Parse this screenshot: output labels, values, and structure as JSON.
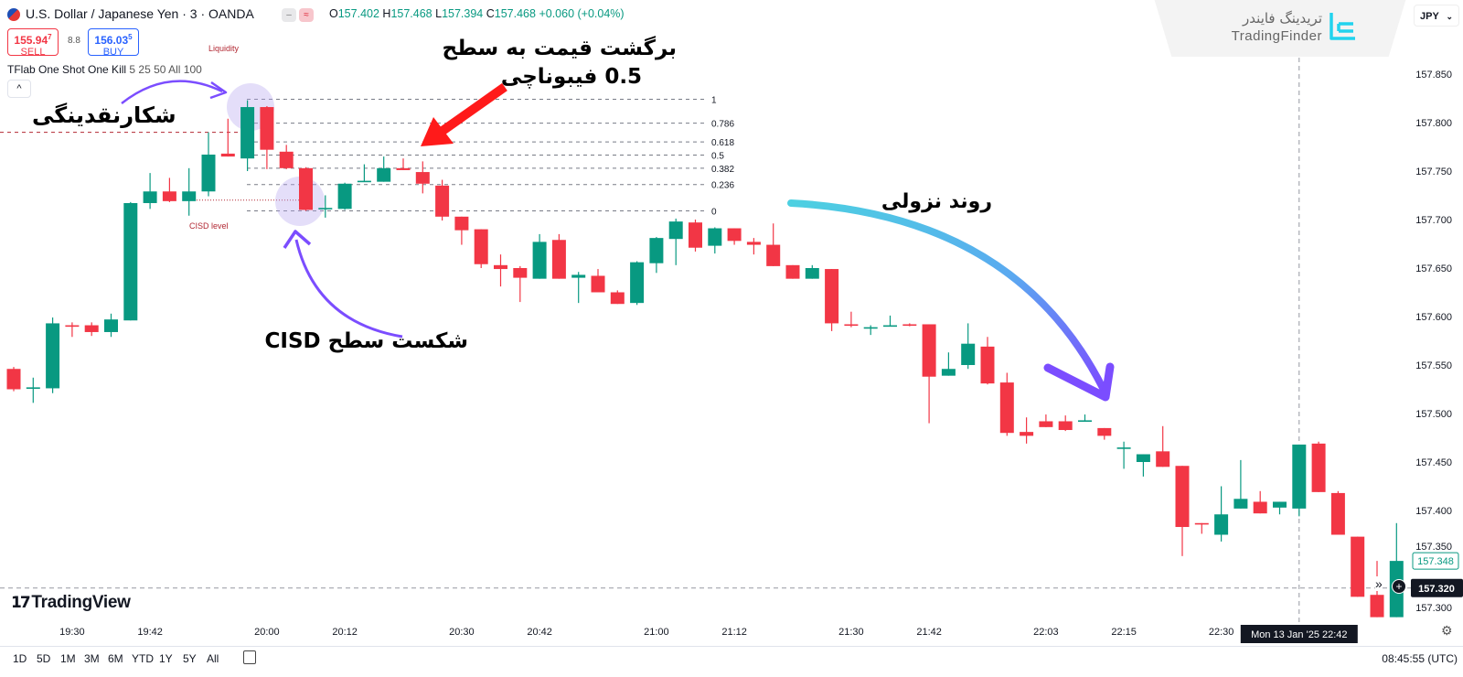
{
  "header": {
    "symbol_title": "U.S. Dollar / Japanese Yen · 3 · OANDA",
    "ohlc": {
      "o_label": "O",
      "o": "157.402",
      "h_label": "H",
      "h": "157.468",
      "l_label": "L",
      "l": "157.394",
      "c_label": "C",
      "c": "157.468",
      "change": "+0.060 (+0.04%)"
    }
  },
  "trade": {
    "sell_price": "155.94",
    "sell_pip": "7",
    "sell_label": "SELL",
    "spread": "8.8",
    "buy_price": "156.03",
    "buy_pip": "5",
    "buy_label": "BUY"
  },
  "indicator": {
    "name": "TFlab One Shot One Kill",
    "params": "5 25 50 All 100",
    "collapse_icon": "chevron-up"
  },
  "watermark": {
    "fa": "تریدینگ فایندر",
    "en": "TradingFinder"
  },
  "currency": "JPY",
  "annotations": {
    "liquidity_hunt": "شکارنقدینگی",
    "fib_return_line1": "برگشت قیمت به سطح",
    "fib_return_line2": "0.5 فیبوناچی",
    "cisd_break": "شکست سطح CISD",
    "downtrend": "روند نزولی"
  },
  "chart_labels": {
    "liquidity": "Liquidity",
    "cisd": "CISD level"
  },
  "crosshair": {
    "price": "157.320",
    "time": "Mon 13 Jan '25  22:42"
  },
  "last_price": "157.348",
  "logo": "TradingView",
  "ranges": [
    "1D",
    "5D",
    "1M",
    "3M",
    "6M",
    "YTD",
    "1Y",
    "5Y",
    "All"
  ],
  "clock": "08:45:55 (UTC)",
  "colors": {
    "up": "#089981",
    "down": "#f23645",
    "fib": "#787b86",
    "liquidity": "#b22833",
    "arrow_red": "#ff1a1a",
    "arrow_purple": "#7b4dff",
    "arrow_cyan": "#4dd0e1"
  },
  "chart_data": {
    "type": "candlestick",
    "symbol": "USDJPY",
    "timeframe_minutes": 3,
    "ylim": [
      157.282,
      157.872
    ],
    "y_ticks": [
      "157.850",
      "157.800",
      "157.750",
      "157.700",
      "157.650",
      "157.600",
      "157.550",
      "157.500",
      "157.450",
      "157.400",
      "157.350",
      "157.300"
    ],
    "x_ticks": [
      "19:30",
      "19:42",
      "20:00",
      "20:12",
      "20:30",
      "20:42",
      "21:00",
      "21:12",
      "21:30",
      "21:42",
      "22:03",
      "22:15",
      "22:30"
    ],
    "fib": {
      "high": 157.824,
      "low": 157.709,
      "levels": [
        "1",
        "0.786",
        "0.618",
        "0.5",
        "0.382",
        "0.236",
        "0"
      ]
    },
    "liquidity_level": 157.79,
    "cisd_level": 157.72,
    "candles_fields": [
      "t",
      "o",
      "h",
      "l",
      "c"
    ],
    "candles": [
      [
        "19:21",
        157.546,
        157.548,
        157.523,
        157.525
      ],
      [
        "19:24",
        157.526,
        157.537,
        157.511,
        157.527
      ],
      [
        "19:27",
        157.526,
        157.599,
        157.521,
        157.593
      ],
      [
        "19:30",
        157.591,
        157.594,
        157.579,
        157.59
      ],
      [
        "19:33",
        157.591,
        157.594,
        157.58,
        157.584
      ],
      [
        "19:36",
        157.584,
        157.603,
        157.579,
        157.597
      ],
      [
        "19:39",
        157.596,
        157.718,
        157.596,
        157.717
      ],
      [
        "19:42",
        157.717,
        157.748,
        157.711,
        157.729
      ],
      [
        "19:45",
        157.729,
        157.743,
        157.718,
        157.719
      ],
      [
        "19:48",
        157.719,
        157.753,
        157.704,
        157.729
      ],
      [
        "19:51",
        157.729,
        157.79,
        157.724,
        157.767
      ],
      [
        "19:54",
        157.768,
        157.804,
        157.765,
        157.765
      ],
      [
        "19:57",
        157.763,
        157.823,
        157.75,
        157.816
      ],
      [
        "20:00",
        157.816,
        157.817,
        157.752,
        157.772
      ],
      [
        "20:03",
        157.77,
        157.777,
        157.752,
        157.753
      ],
      [
        "20:06",
        157.753,
        157.754,
        157.709,
        157.71
      ],
      [
        "20:09",
        157.711,
        157.725,
        157.702,
        157.712
      ],
      [
        "20:12",
        157.711,
        157.738,
        157.71,
        157.737
      ],
      [
        "20:15",
        157.739,
        157.757,
        157.739,
        157.74
      ],
      [
        "20:18",
        157.739,
        157.765,
        157.739,
        157.753
      ],
      [
        "20:21",
        157.753,
        157.763,
        157.751,
        157.751
      ],
      [
        "20:24",
        157.749,
        157.76,
        157.727,
        157.737
      ],
      [
        "20:27",
        157.735,
        157.741,
        157.699,
        157.703
      ],
      [
        "20:30",
        157.703,
        157.703,
        157.674,
        157.689
      ],
      [
        "20:33",
        157.69,
        157.69,
        157.65,
        157.654
      ],
      [
        "20:36",
        157.653,
        157.664,
        157.631,
        157.649
      ],
      [
        "20:39",
        157.65,
        157.652,
        157.615,
        157.64
      ],
      [
        "20:42",
        157.639,
        157.685,
        157.639,
        157.677
      ],
      [
        "20:45",
        157.679,
        157.685,
        157.639,
        157.639
      ],
      [
        "20:48",
        157.64,
        157.646,
        157.614,
        157.643
      ],
      [
        "20:51",
        157.642,
        157.649,
        157.625,
        157.625
      ],
      [
        "20:54",
        157.625,
        157.627,
        157.613,
        157.613
      ],
      [
        "20:57",
        157.614,
        157.657,
        157.612,
        157.656
      ],
      [
        "21:00",
        157.655,
        157.682,
        157.645,
        157.681
      ],
      [
        "21:03",
        157.68,
        157.701,
        157.653,
        157.698
      ],
      [
        "21:06",
        157.697,
        157.7,
        157.667,
        157.671
      ],
      [
        "21:09",
        157.673,
        157.692,
        157.665,
        157.691
      ],
      [
        "21:12",
        157.691,
        157.691,
        157.674,
        157.678
      ],
      [
        "21:15",
        157.677,
        157.681,
        157.664,
        157.674
      ],
      [
        "21:18",
        157.674,
        157.696,
        157.652,
        157.652
      ],
      [
        "21:21",
        157.653,
        157.653,
        157.639,
        157.639
      ],
      [
        "21:24",
        157.639,
        157.653,
        157.639,
        157.65
      ],
      [
        "21:27",
        157.649,
        157.649,
        157.585,
        157.593
      ],
      [
        "21:30",
        157.592,
        157.605,
        157.589,
        157.591
      ],
      [
        "21:33",
        157.588,
        157.591,
        157.581,
        157.589
      ],
      [
        "21:36",
        157.59,
        157.601,
        157.59,
        157.591
      ],
      [
        "21:39",
        157.592,
        157.593,
        157.59,
        157.591
      ],
      [
        "21:42",
        157.592,
        157.592,
        157.49,
        157.538
      ],
      [
        "21:45",
        157.539,
        157.563,
        157.539,
        157.546
      ],
      [
        "21:48",
        157.55,
        157.593,
        157.546,
        157.572
      ],
      [
        "21:51",
        157.569,
        157.579,
        157.53,
        157.531
      ],
      [
        "21:54",
        157.532,
        157.542,
        157.477,
        157.48
      ],
      [
        "21:57",
        157.481,
        157.496,
        157.469,
        157.477
      ],
      [
        "22:03",
        157.492,
        157.499,
        157.486,
        157.486
      ],
      [
        "22:06",
        157.492,
        157.498,
        157.482,
        157.483
      ],
      [
        "22:09",
        157.492,
        157.499,
        157.492,
        157.493
      ],
      [
        "22:12",
        157.485,
        157.485,
        157.473,
        157.477
      ],
      [
        "22:15",
        157.464,
        157.471,
        157.443,
        157.465
      ],
      [
        "22:18",
        157.45,
        157.458,
        157.435,
        157.458
      ],
      [
        "22:21",
        157.461,
        157.487,
        157.445,
        157.445
      ],
      [
        "22:24",
        157.446,
        157.446,
        157.353,
        157.383
      ],
      [
        "22:27",
        157.387,
        157.387,
        157.376,
        157.386
      ],
      [
        "22:30",
        157.375,
        157.425,
        157.368,
        157.396
      ],
      [
        "22:33",
        157.402,
        157.452,
        157.402,
        157.412
      ],
      [
        "22:36",
        157.409,
        157.42,
        157.397,
        157.397
      ],
      [
        "22:39",
        157.403,
        157.409,
        157.396,
        157.409
      ],
      [
        "22:42",
        157.402,
        157.468,
        157.394,
        157.468
      ],
      [
        "22:45",
        157.469,
        157.471,
        157.419,
        157.419
      ],
      [
        "22:48",
        157.418,
        157.42,
        157.375,
        157.375
      ],
      [
        "22:51",
        157.373,
        157.373,
        157.311,
        157.311
      ],
      [
        "22:54",
        157.313,
        157.348,
        157.29,
        157.29
      ],
      [
        "22:57",
        157.29,
        157.387,
        157.29,
        157.348
      ]
    ],
    "crosshair_time": "22:42"
  }
}
